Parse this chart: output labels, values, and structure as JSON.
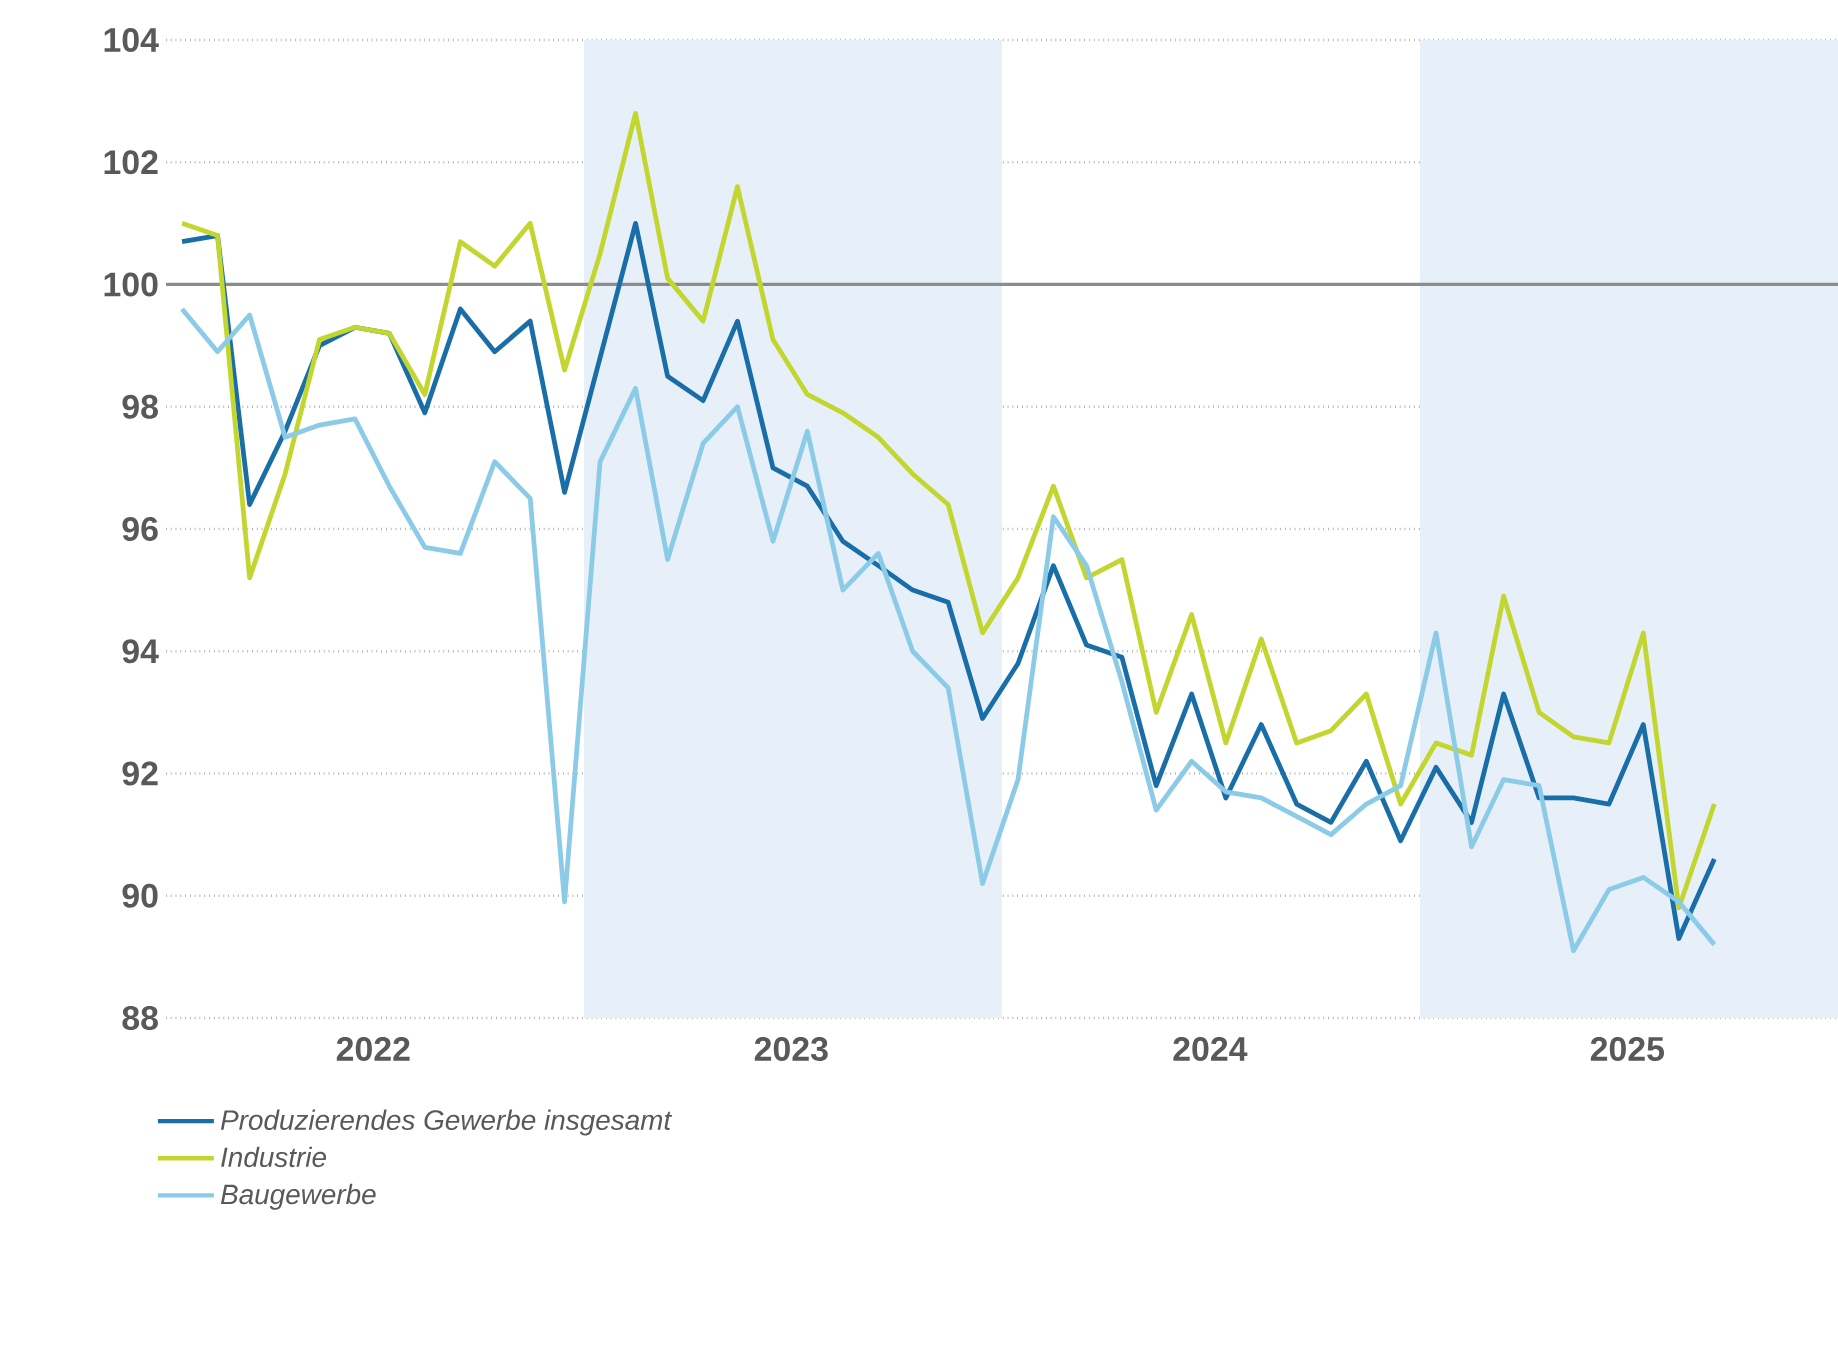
{
  "chart_data": {
    "type": "line",
    "x": [
      "2022-01-15",
      "2022-02-15",
      "2022-03-15",
      "2022-04-15",
      "2022-05-15",
      "2022-06-15",
      "2022-07-15",
      "2022-08-15",
      "2022-09-15",
      "2022-10-15",
      "2022-11-15",
      "2022-12-15",
      "2023-01-15",
      "2023-02-15",
      "2023-03-15",
      "2023-04-15",
      "2023-05-15",
      "2023-06-15",
      "2023-07-15",
      "2023-08-15",
      "2023-09-15",
      "2023-10-15",
      "2023-11-15",
      "2023-12-15",
      "2024-01-15",
      "2024-02-15",
      "2024-03-15",
      "2024-04-15",
      "2024-05-15",
      "2024-06-15",
      "2024-07-15",
      "2024-08-15",
      "2024-09-15",
      "2024-10-15",
      "2024-11-15",
      "2024-12-15",
      "2025-01-15",
      "2025-02-15",
      "2025-03-15",
      "2025-04-15",
      "2025-05-15",
      "2025-06-15",
      "2025-07-15",
      "2025-08-15",
      "2025-09-15"
    ],
    "series": [
      {
        "name": "Produzierendes Gewerbe insgesamt",
        "color": "#1a6ea8",
        "values": [
          100.7,
          100.8,
          96.4,
          97.6,
          99.0,
          99.3,
          99.2,
          97.9,
          99.6,
          98.9,
          99.4,
          96.6,
          98.8,
          101.0,
          98.5,
          98.1,
          99.4,
          97.0,
          96.7,
          95.8,
          95.4,
          95.0,
          94.8,
          92.9,
          93.8,
          95.4,
          94.1,
          93.9,
          91.8,
          93.3,
          91.6,
          92.8,
          91.5,
          91.2,
          92.2,
          90.9,
          92.1,
          91.2,
          93.3,
          91.6,
          91.6,
          91.5,
          92.8,
          89.3,
          90.6
        ]
      },
      {
        "name": "Industrie",
        "color": "#c3d630",
        "values": [
          101.0,
          100.8,
          95.2,
          96.9,
          99.1,
          99.3,
          99.2,
          98.2,
          100.7,
          100.3,
          101.0,
          98.6,
          100.5,
          102.8,
          100.1,
          99.4,
          101.6,
          99.1,
          98.2,
          97.9,
          97.5,
          96.9,
          96.4,
          94.3,
          95.2,
          96.7,
          95.2,
          95.5,
          93.0,
          94.6,
          92.5,
          94.2,
          92.5,
          92.7,
          93.3,
          91.5,
          92.5,
          92.3,
          94.9,
          93.0,
          92.6,
          92.5,
          94.3,
          89.8,
          91.5
        ]
      },
      {
        "name": "Baugewerbe",
        "color": "#8ccbe8",
        "values": [
          99.6,
          98.9,
          99.5,
          97.5,
          97.7,
          97.8,
          96.7,
          95.7,
          95.6,
          97.1,
          96.5,
          89.9,
          97.1,
          98.3,
          95.5,
          97.4,
          98.0,
          95.8,
          97.6,
          95.0,
          95.6,
          94.0,
          93.4,
          90.2,
          91.9,
          96.2,
          95.4,
          93.5,
          91.4,
          92.2,
          91.7,
          91.6,
          91.3,
          91.0,
          91.5,
          91.8,
          94.3,
          90.8,
          91.9,
          91.8,
          89.1,
          90.1,
          90.3,
          89.9,
          89.2
        ]
      }
    ],
    "xlim": [
      "2022-01-01",
      "2026-01-01"
    ],
    "xticks": [
      {
        "value": "2022-07-01",
        "label": "2022"
      },
      {
        "value": "2023-07-01",
        "label": "2023"
      },
      {
        "value": "2024-07-01",
        "label": "2024"
      },
      {
        "value": "2025-07-01",
        "label": "2025"
      }
    ],
    "ylim": [
      88,
      104
    ],
    "yticks": [
      88,
      90,
      92,
      94,
      96,
      98,
      100,
      102,
      104
    ],
    "ref_lines": [
      {
        "axis": "y",
        "value": 100,
        "color": "#8c8c8c"
      }
    ],
    "bands": [
      {
        "axis": "x",
        "from": "2023-01-01",
        "to": "2024-01-01",
        "color": "#e7f0f9"
      },
      {
        "axis": "x",
        "from": "2025-01-01",
        "to": "2026-01-01",
        "color": "#e7f0f9"
      }
    ],
    "grid": "y",
    "legend": "bottom",
    "marker": "none",
    "line_style": "solid"
  }
}
